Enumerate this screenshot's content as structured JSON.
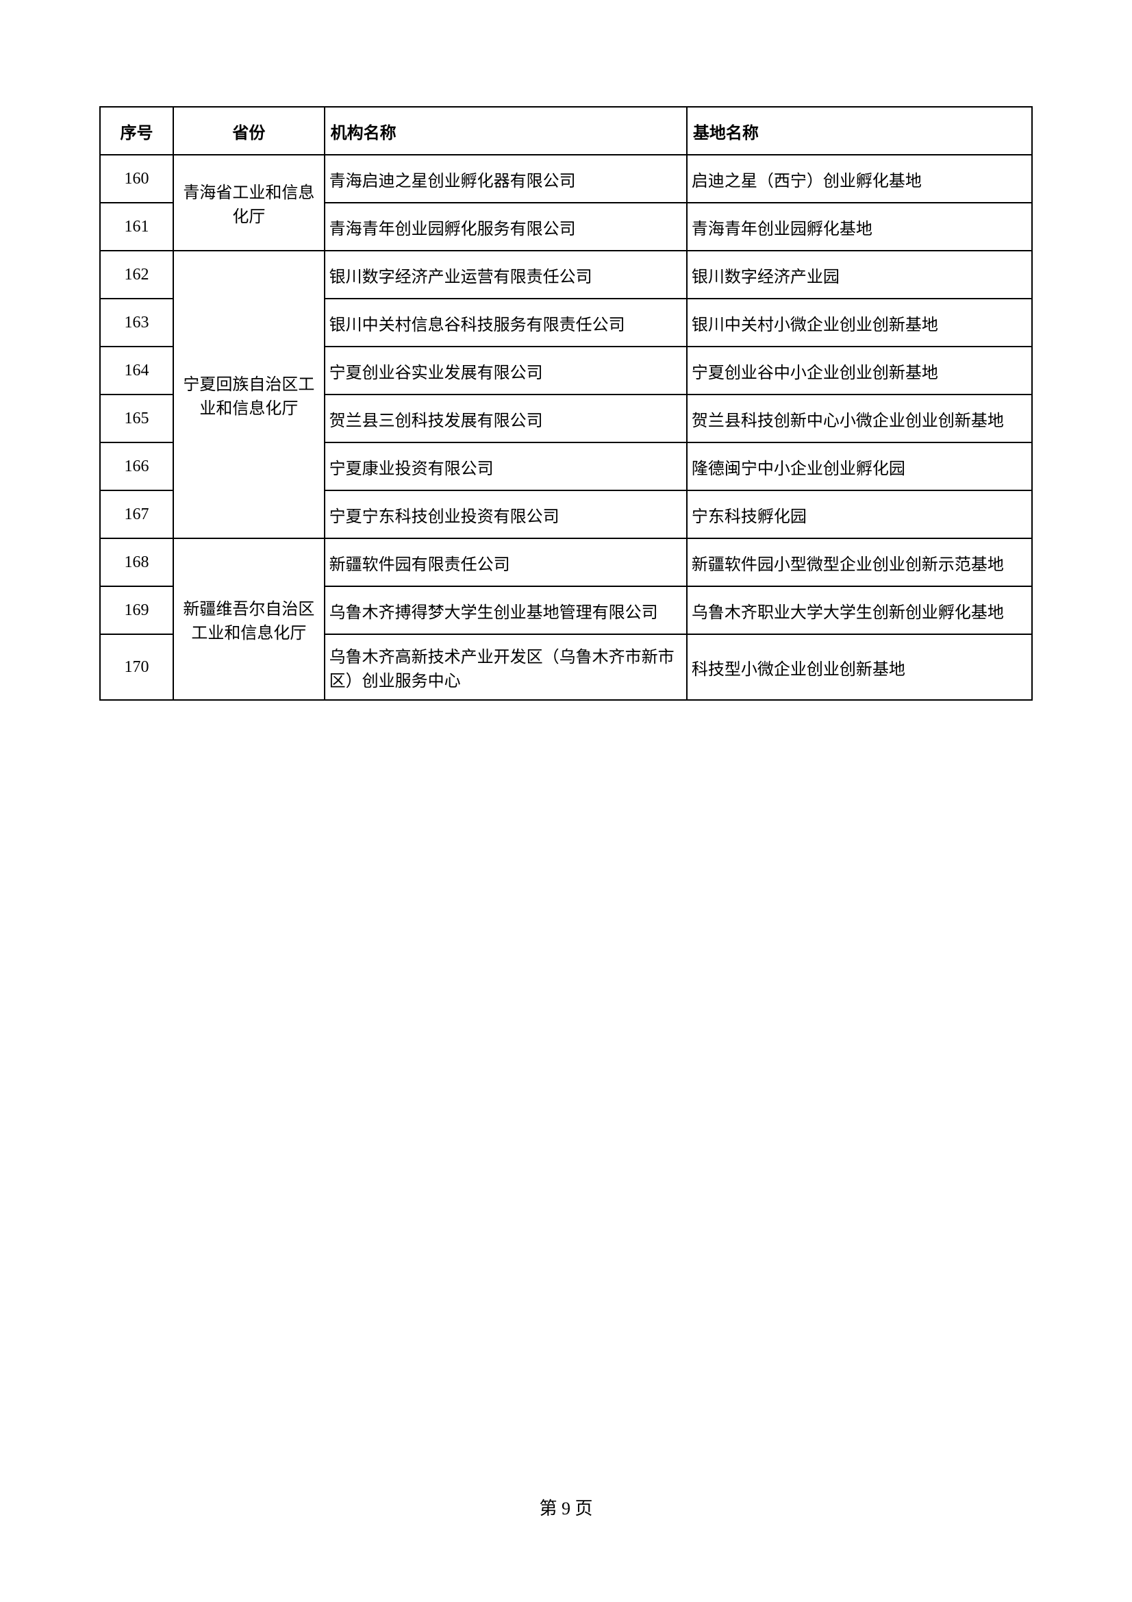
{
  "table": {
    "headers": {
      "seq": "序号",
      "province": "省份",
      "org": "机构名称",
      "base": "基地名称"
    },
    "provinces": [
      {
        "name": "青海省工业和信息化厅",
        "rowspan": 2
      },
      {
        "name": "宁夏回族自治区工业和信息化厅",
        "rowspan": 6
      },
      {
        "name": "新疆维吾尔自治区工业和信息化厅",
        "rowspan": 3
      }
    ],
    "rows": [
      {
        "seq": "160",
        "provinceIndex": 0,
        "isFirstOfProvince": true,
        "org": "青海启迪之星创业孵化器有限公司",
        "base": "启迪之星（西宁）创业孵化基地"
      },
      {
        "seq": "161",
        "provinceIndex": 0,
        "isFirstOfProvince": false,
        "org": "青海青年创业园孵化服务有限公司",
        "base": "青海青年创业园孵化基地"
      },
      {
        "seq": "162",
        "provinceIndex": 1,
        "isFirstOfProvince": true,
        "org": "银川数字经济产业运营有限责任公司",
        "base": "银川数字经济产业园"
      },
      {
        "seq": "163",
        "provinceIndex": 1,
        "isFirstOfProvince": false,
        "org": "银川中关村信息谷科技服务有限责任公司",
        "base": "银川中关村小微企业创业创新基地"
      },
      {
        "seq": "164",
        "provinceIndex": 1,
        "isFirstOfProvince": false,
        "org": "宁夏创业谷实业发展有限公司",
        "base": "宁夏创业谷中小企业创业创新基地"
      },
      {
        "seq": "165",
        "provinceIndex": 1,
        "isFirstOfProvince": false,
        "org": "贺兰县三创科技发展有限公司",
        "base": "贺兰县科技创新中心小微企业创业创新基地"
      },
      {
        "seq": "166",
        "provinceIndex": 1,
        "isFirstOfProvince": false,
        "org": "宁夏康业投资有限公司",
        "base": "隆德闽宁中小企业创业孵化园"
      },
      {
        "seq": "167",
        "provinceIndex": 1,
        "isFirstOfProvince": false,
        "org": "宁夏宁东科技创业投资有限公司",
        "base": "宁东科技孵化园"
      },
      {
        "seq": "168",
        "provinceIndex": 2,
        "isFirstOfProvince": true,
        "org": "新疆软件园有限责任公司",
        "base": "新疆软件园小型微型企业创业创新示范基地"
      },
      {
        "seq": "169",
        "provinceIndex": 2,
        "isFirstOfProvince": false,
        "org": "乌鲁木齐搏得梦大学生创业基地管理有限公司",
        "base": "乌鲁木齐职业大学大学生创新创业孵化基地"
      },
      {
        "seq": "170",
        "provinceIndex": 2,
        "isFirstOfProvince": false,
        "org": "乌鲁木齐高新技术产业开发区（乌鲁木齐市新市区）创业服务中心",
        "base": "科技型小微企业创业创新基地"
      }
    ]
  },
  "pageNumber": "第 9 页"
}
